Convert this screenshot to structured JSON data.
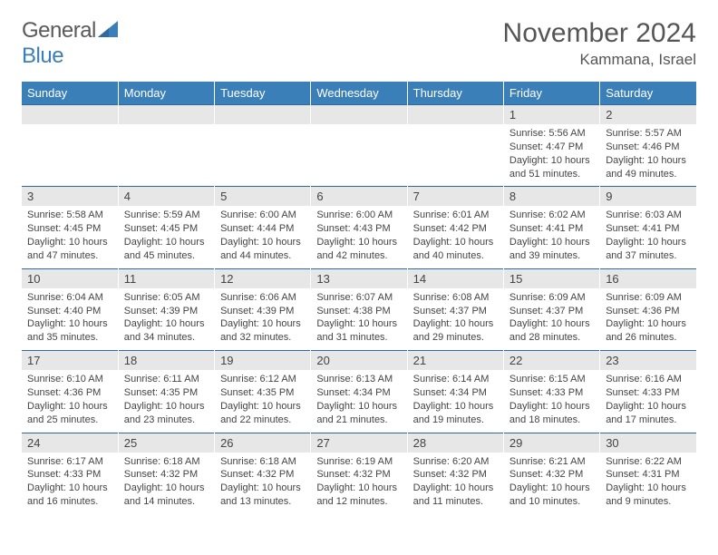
{
  "logo": {
    "general": "General",
    "blue": "Blue"
  },
  "title": "November 2024",
  "location": "Kammana, Israel",
  "colors": {
    "header_bg": "#3a7fb8",
    "daynum_bg": "#e7e7e7",
    "row_border": "#2d6aa0",
    "page_bg": "#ffffff",
    "text": "#444444"
  },
  "weekdays": [
    "Sunday",
    "Monday",
    "Tuesday",
    "Wednesday",
    "Thursday",
    "Friday",
    "Saturday"
  ],
  "weeks": [
    {
      "days": [
        {
          "num": "",
          "sunrise": "",
          "sunset": "",
          "daylight": ""
        },
        {
          "num": "",
          "sunrise": "",
          "sunset": "",
          "daylight": ""
        },
        {
          "num": "",
          "sunrise": "",
          "sunset": "",
          "daylight": ""
        },
        {
          "num": "",
          "sunrise": "",
          "sunset": "",
          "daylight": ""
        },
        {
          "num": "",
          "sunrise": "",
          "sunset": "",
          "daylight": ""
        },
        {
          "num": "1",
          "sunrise": "Sunrise: 5:56 AM",
          "sunset": "Sunset: 4:47 PM",
          "daylight": "Daylight: 10 hours and 51 minutes."
        },
        {
          "num": "2",
          "sunrise": "Sunrise: 5:57 AM",
          "sunset": "Sunset: 4:46 PM",
          "daylight": "Daylight: 10 hours and 49 minutes."
        }
      ]
    },
    {
      "days": [
        {
          "num": "3",
          "sunrise": "Sunrise: 5:58 AM",
          "sunset": "Sunset: 4:45 PM",
          "daylight": "Daylight: 10 hours and 47 minutes."
        },
        {
          "num": "4",
          "sunrise": "Sunrise: 5:59 AM",
          "sunset": "Sunset: 4:45 PM",
          "daylight": "Daylight: 10 hours and 45 minutes."
        },
        {
          "num": "5",
          "sunrise": "Sunrise: 6:00 AM",
          "sunset": "Sunset: 4:44 PM",
          "daylight": "Daylight: 10 hours and 44 minutes."
        },
        {
          "num": "6",
          "sunrise": "Sunrise: 6:00 AM",
          "sunset": "Sunset: 4:43 PM",
          "daylight": "Daylight: 10 hours and 42 minutes."
        },
        {
          "num": "7",
          "sunrise": "Sunrise: 6:01 AM",
          "sunset": "Sunset: 4:42 PM",
          "daylight": "Daylight: 10 hours and 40 minutes."
        },
        {
          "num": "8",
          "sunrise": "Sunrise: 6:02 AM",
          "sunset": "Sunset: 4:41 PM",
          "daylight": "Daylight: 10 hours and 39 minutes."
        },
        {
          "num": "9",
          "sunrise": "Sunrise: 6:03 AM",
          "sunset": "Sunset: 4:41 PM",
          "daylight": "Daylight: 10 hours and 37 minutes."
        }
      ]
    },
    {
      "days": [
        {
          "num": "10",
          "sunrise": "Sunrise: 6:04 AM",
          "sunset": "Sunset: 4:40 PM",
          "daylight": "Daylight: 10 hours and 35 minutes."
        },
        {
          "num": "11",
          "sunrise": "Sunrise: 6:05 AM",
          "sunset": "Sunset: 4:39 PM",
          "daylight": "Daylight: 10 hours and 34 minutes."
        },
        {
          "num": "12",
          "sunrise": "Sunrise: 6:06 AM",
          "sunset": "Sunset: 4:39 PM",
          "daylight": "Daylight: 10 hours and 32 minutes."
        },
        {
          "num": "13",
          "sunrise": "Sunrise: 6:07 AM",
          "sunset": "Sunset: 4:38 PM",
          "daylight": "Daylight: 10 hours and 31 minutes."
        },
        {
          "num": "14",
          "sunrise": "Sunrise: 6:08 AM",
          "sunset": "Sunset: 4:37 PM",
          "daylight": "Daylight: 10 hours and 29 minutes."
        },
        {
          "num": "15",
          "sunrise": "Sunrise: 6:09 AM",
          "sunset": "Sunset: 4:37 PM",
          "daylight": "Daylight: 10 hours and 28 minutes."
        },
        {
          "num": "16",
          "sunrise": "Sunrise: 6:09 AM",
          "sunset": "Sunset: 4:36 PM",
          "daylight": "Daylight: 10 hours and 26 minutes."
        }
      ]
    },
    {
      "days": [
        {
          "num": "17",
          "sunrise": "Sunrise: 6:10 AM",
          "sunset": "Sunset: 4:36 PM",
          "daylight": "Daylight: 10 hours and 25 minutes."
        },
        {
          "num": "18",
          "sunrise": "Sunrise: 6:11 AM",
          "sunset": "Sunset: 4:35 PM",
          "daylight": "Daylight: 10 hours and 23 minutes."
        },
        {
          "num": "19",
          "sunrise": "Sunrise: 6:12 AM",
          "sunset": "Sunset: 4:35 PM",
          "daylight": "Daylight: 10 hours and 22 minutes."
        },
        {
          "num": "20",
          "sunrise": "Sunrise: 6:13 AM",
          "sunset": "Sunset: 4:34 PM",
          "daylight": "Daylight: 10 hours and 21 minutes."
        },
        {
          "num": "21",
          "sunrise": "Sunrise: 6:14 AM",
          "sunset": "Sunset: 4:34 PM",
          "daylight": "Daylight: 10 hours and 19 minutes."
        },
        {
          "num": "22",
          "sunrise": "Sunrise: 6:15 AM",
          "sunset": "Sunset: 4:33 PM",
          "daylight": "Daylight: 10 hours and 18 minutes."
        },
        {
          "num": "23",
          "sunrise": "Sunrise: 6:16 AM",
          "sunset": "Sunset: 4:33 PM",
          "daylight": "Daylight: 10 hours and 17 minutes."
        }
      ]
    },
    {
      "days": [
        {
          "num": "24",
          "sunrise": "Sunrise: 6:17 AM",
          "sunset": "Sunset: 4:33 PM",
          "daylight": "Daylight: 10 hours and 16 minutes."
        },
        {
          "num": "25",
          "sunrise": "Sunrise: 6:18 AM",
          "sunset": "Sunset: 4:32 PM",
          "daylight": "Daylight: 10 hours and 14 minutes."
        },
        {
          "num": "26",
          "sunrise": "Sunrise: 6:18 AM",
          "sunset": "Sunset: 4:32 PM",
          "daylight": "Daylight: 10 hours and 13 minutes."
        },
        {
          "num": "27",
          "sunrise": "Sunrise: 6:19 AM",
          "sunset": "Sunset: 4:32 PM",
          "daylight": "Daylight: 10 hours and 12 minutes."
        },
        {
          "num": "28",
          "sunrise": "Sunrise: 6:20 AM",
          "sunset": "Sunset: 4:32 PM",
          "daylight": "Daylight: 10 hours and 11 minutes."
        },
        {
          "num": "29",
          "sunrise": "Sunrise: 6:21 AM",
          "sunset": "Sunset: 4:32 PM",
          "daylight": "Daylight: 10 hours and 10 minutes."
        },
        {
          "num": "30",
          "sunrise": "Sunrise: 6:22 AM",
          "sunset": "Sunset: 4:31 PM",
          "daylight": "Daylight: 10 hours and 9 minutes."
        }
      ]
    }
  ]
}
